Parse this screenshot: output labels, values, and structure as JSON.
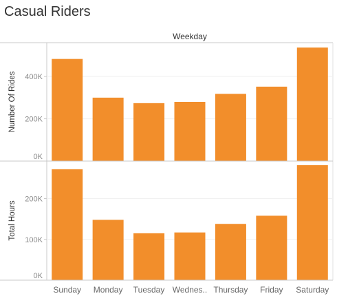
{
  "title": "Casual Riders",
  "column_header": "Weekday",
  "chart_data": {
    "type": "bar",
    "categories": [
      "Sunday",
      "Monday",
      "Tuesday",
      "Wednes..",
      "Thursday",
      "Friday",
      "Saturday"
    ],
    "bar_color": "#f28e2b",
    "series": [
      {
        "name": "Number Of Rides",
        "ylabel": "Number Of Rides",
        "values": [
          483000,
          300000,
          274000,
          280000,
          318000,
          352000,
          537000
        ],
        "ylim": [
          0,
          560000
        ],
        "ticks": [
          0,
          200000,
          400000
        ],
        "tick_labels": [
          "0K",
          "200K",
          "400K"
        ]
      },
      {
        "name": "Total Hours",
        "ylabel": "Total Hours",
        "values": [
          272000,
          148000,
          115000,
          117000,
          138000,
          158000,
          282000
        ],
        "ylim": [
          0,
          292000
        ],
        "ticks": [
          0,
          100000,
          200000
        ],
        "tick_labels": [
          "0K",
          "100K",
          "200K"
        ]
      }
    ],
    "xlabel": "",
    "grid": "horizontal"
  }
}
